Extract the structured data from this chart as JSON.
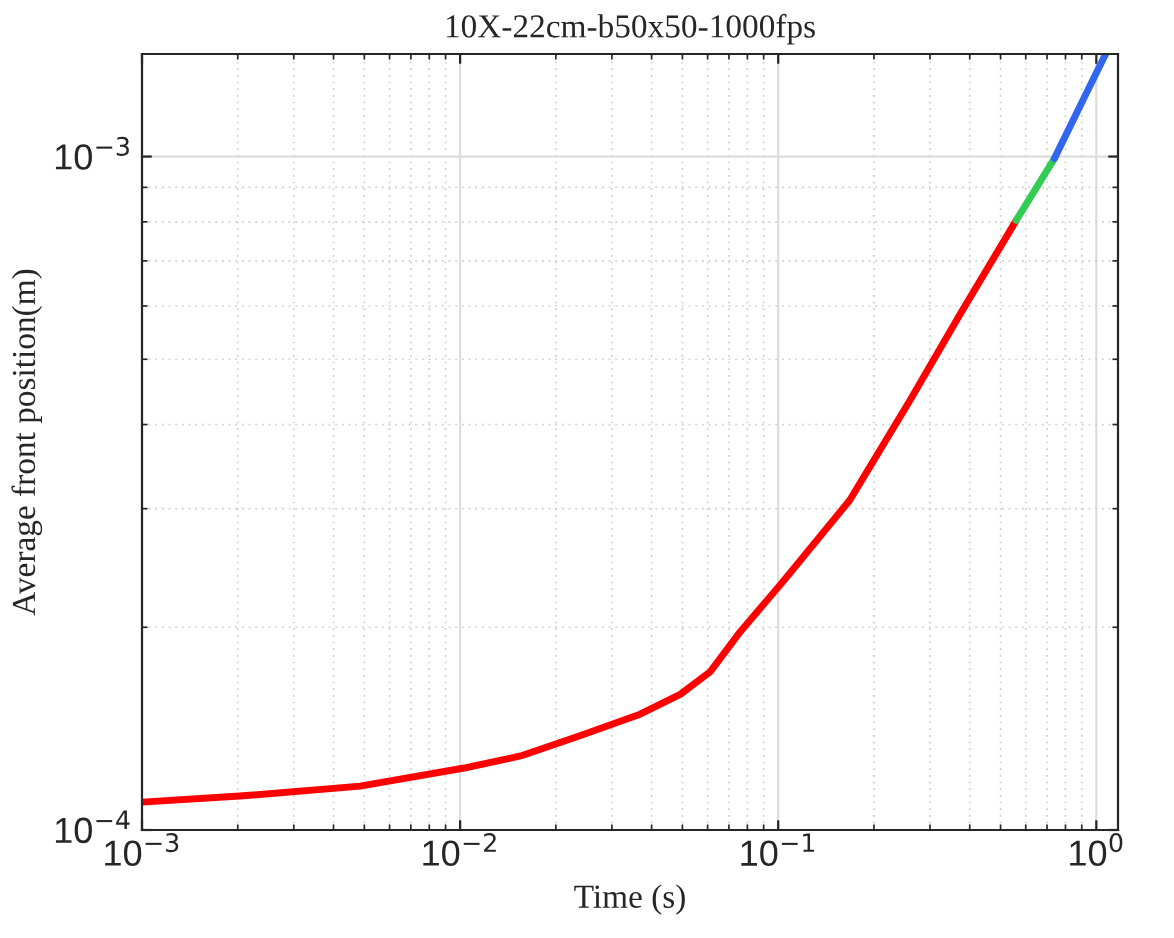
{
  "chart_data": {
    "type": "line",
    "title": "10X-22cm-b50x50-1000fps",
    "xlabel": "Time (s)",
    "ylabel": "Average front position(m)",
    "log": "xy",
    "grid": true,
    "legend": false,
    "xlim": [
      0.001,
      1.17
    ],
    "ylim": [
      0.0001,
      0.00142
    ],
    "xticks": [
      {
        "value": 0.001,
        "label": "10$^{−3}$"
      },
      {
        "value": 0.01,
        "label": "10$^{−2}$"
      },
      {
        "value": 0.1,
        "label": "10$^{−1}$"
      },
      {
        "value": 1,
        "label": "10$^{0}$"
      }
    ],
    "yticks": [
      {
        "value": 0.0001,
        "label": "10$^{−4}$"
      },
      {
        "value": 0.001,
        "label": "10$^{−3}$"
      }
    ],
    "series": [
      {
        "color": "#ff0000",
        "x": [
          0.001,
          0.00203,
          0.00485,
          0.0103,
          0.0155,
          0.0238,
          0.0368,
          0.0492,
          0.061,
          0.076,
          0.1045,
          0.168,
          0.26,
          0.373,
          0.56
        ],
        "values": [
          0.00011,
          0.0001123,
          0.0001162,
          0.0001236,
          0.0001288,
          0.000138,
          0.0001486,
          0.000159,
          0.0001716,
          0.000197,
          0.000235,
          0.000309,
          0.000435,
          0.000583,
          0.000804
        ]
      },
      {
        "color": "#33cc55",
        "x": [
          0.56,
          0.738
        ],
        "values": [
          0.000804,
          0.000993
        ]
      },
      {
        "color": "#3366ee",
        "x": [
          0.738,
          0.89,
          1.07
        ],
        "values": [
          0.000993,
          0.00119,
          0.00142
        ]
      }
    ]
  }
}
